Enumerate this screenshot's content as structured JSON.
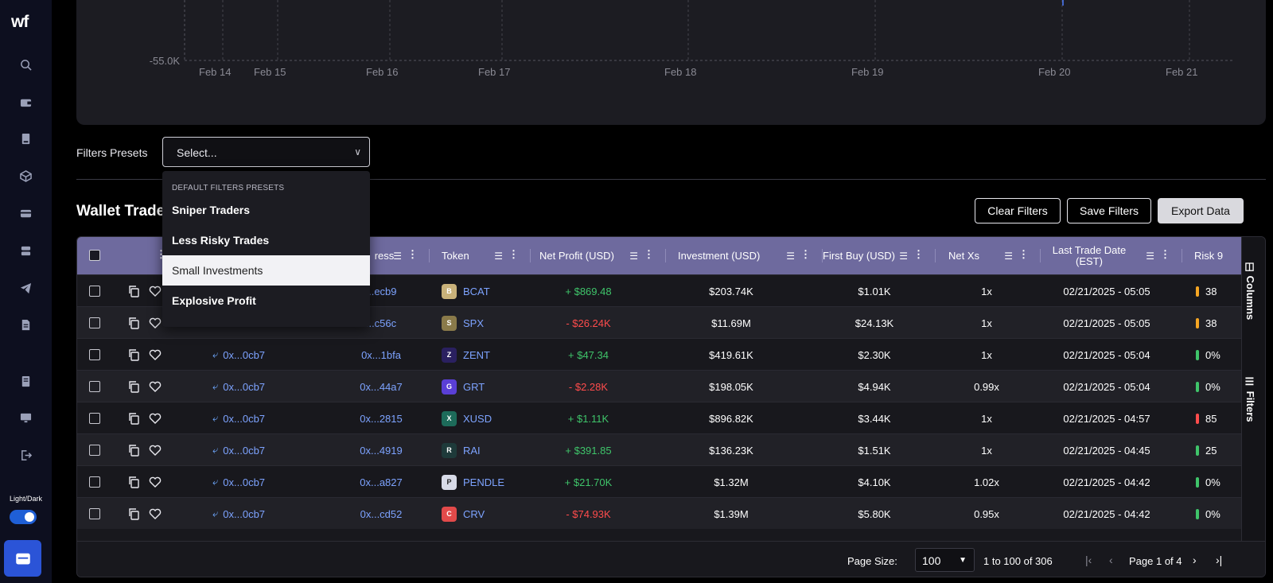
{
  "sidebar": {
    "logo": "wf",
    "icons": [
      "search-icon",
      "wallet-icon",
      "book-icon",
      "cube-icon",
      "card-icon",
      "database-icon",
      "telegram-icon",
      "document-icon",
      "receipt-icon",
      "monitor-icon",
      "logout-icon"
    ],
    "theme_label": "Light/Dark",
    "theme_toggle_on": true,
    "wallet_button": "wallet-icon"
  },
  "chart": {
    "y_tick": "-55.0K",
    "x_ticks": [
      "Feb 14",
      "Feb 15",
      "Feb 16",
      "Feb 17",
      "Feb 18",
      "Feb 19",
      "Feb 20",
      "Feb 21"
    ]
  },
  "filters": {
    "label": "Filters Presets",
    "placeholder": "Select...",
    "dropdown": {
      "group": "DEFAULT FILTERS PRESETS",
      "items": [
        "Sniper Traders",
        "Less Risky Trades",
        "Small Investments",
        "Explosive Profit"
      ],
      "highlighted": "Small Investments"
    }
  },
  "section": {
    "title": "Wallet Trade I",
    "buttons": {
      "clear": "Clear Filters",
      "save": "Save Filters",
      "export": "Export Data"
    }
  },
  "table": {
    "headers": {
      "address": "ress",
      "token": "Token",
      "net_profit": "Net Profit (USD)",
      "investment": "Investment (USD)",
      "first_buy": "First Buy (USD)",
      "net_xs": "Net Xs",
      "last_trade": "Last Trade Date (EST)",
      "risk": "Risk 9"
    },
    "rows": [
      {
        "wallet": "",
        "address": "...ecb9",
        "token": "BCAT",
        "profit": "+ $869.48",
        "profit_sign": "pos",
        "investment": "$203.74K",
        "first_buy": "$1.01K",
        "net_xs": "1x",
        "date": "02/21/2025 - 05:05",
        "risk": "38",
        "risk_color": "#f5a623",
        "token_color": "#c9b27a",
        "token_glyph": "B"
      },
      {
        "wallet": "",
        "address": "...c56c",
        "token": "SPX",
        "profit": "- $26.24K",
        "profit_sign": "neg",
        "investment": "$11.69M",
        "first_buy": "$24.13K",
        "net_xs": "1x",
        "date": "02/21/2025 - 05:05",
        "risk": "38",
        "risk_color": "#f5a623",
        "token_color": "#8a7a4a",
        "token_glyph": "S"
      },
      {
        "wallet": "0x...0cb7",
        "address": "0x...1bfa",
        "token": "ZENT",
        "profit": "+ $47.34",
        "profit_sign": "pos",
        "investment": "$419.61K",
        "first_buy": "$2.30K",
        "net_xs": "1x",
        "date": "02/21/2025 - 05:04",
        "risk": "0%",
        "risk_color": "#3fc46a",
        "token_color": "#2a2060",
        "token_glyph": "Z"
      },
      {
        "wallet": "0x...0cb7",
        "address": "0x...44a7",
        "token": "GRT",
        "profit": "- $2.28K",
        "profit_sign": "neg",
        "investment": "$198.05K",
        "first_buy": "$4.94K",
        "net_xs": "0.99x",
        "date": "02/21/2025 - 05:04",
        "risk": "0%",
        "risk_color": "#3fc46a",
        "token_color": "#5a3fd6",
        "token_glyph": "G"
      },
      {
        "wallet": "0x...0cb7",
        "address": "0x...2815",
        "token": "XUSD",
        "profit": "+ $1.11K",
        "profit_sign": "pos",
        "investment": "$896.82K",
        "first_buy": "$3.44K",
        "net_xs": "1x",
        "date": "02/21/2025 - 04:57",
        "risk": "85",
        "risk_color": "#ff4c4c",
        "token_color": "#1d6b5a",
        "token_glyph": "X"
      },
      {
        "wallet": "0x...0cb7",
        "address": "0x...4919",
        "token": "RAI",
        "profit": "+ $391.85",
        "profit_sign": "pos",
        "investment": "$136.23K",
        "first_buy": "$1.51K",
        "net_xs": "1x",
        "date": "02/21/2025 - 04:45",
        "risk": "25",
        "risk_color": "#3fc46a",
        "token_color": "#1e3a3a",
        "token_glyph": "R"
      },
      {
        "wallet": "0x...0cb7",
        "address": "0x...a827",
        "token": "PENDLE",
        "profit": "+ $21.70K",
        "profit_sign": "pos",
        "investment": "$1.32M",
        "first_buy": "$4.10K",
        "net_xs": "1.02x",
        "date": "02/21/2025 - 04:42",
        "risk": "0%",
        "risk_color": "#3fc46a",
        "token_color": "#d8dbe8",
        "token_glyph": "P"
      },
      {
        "wallet": "0x...0cb7",
        "address": "0x...cd52",
        "token": "CRV",
        "profit": "- $74.93K",
        "profit_sign": "neg",
        "investment": "$1.39M",
        "first_buy": "$5.80K",
        "net_xs": "0.95x",
        "date": "02/21/2025 - 04:42",
        "risk": "0%",
        "risk_color": "#3fc46a",
        "token_color": "#e24a4a",
        "token_glyph": "C"
      }
    ],
    "side_tabs": {
      "columns": "Columns",
      "filters": "Filters"
    }
  },
  "pagination": {
    "page_size_label": "Page Size:",
    "page_size": "100",
    "range": "1 to 100 of 306",
    "page": "Page 1 of 4"
  }
}
